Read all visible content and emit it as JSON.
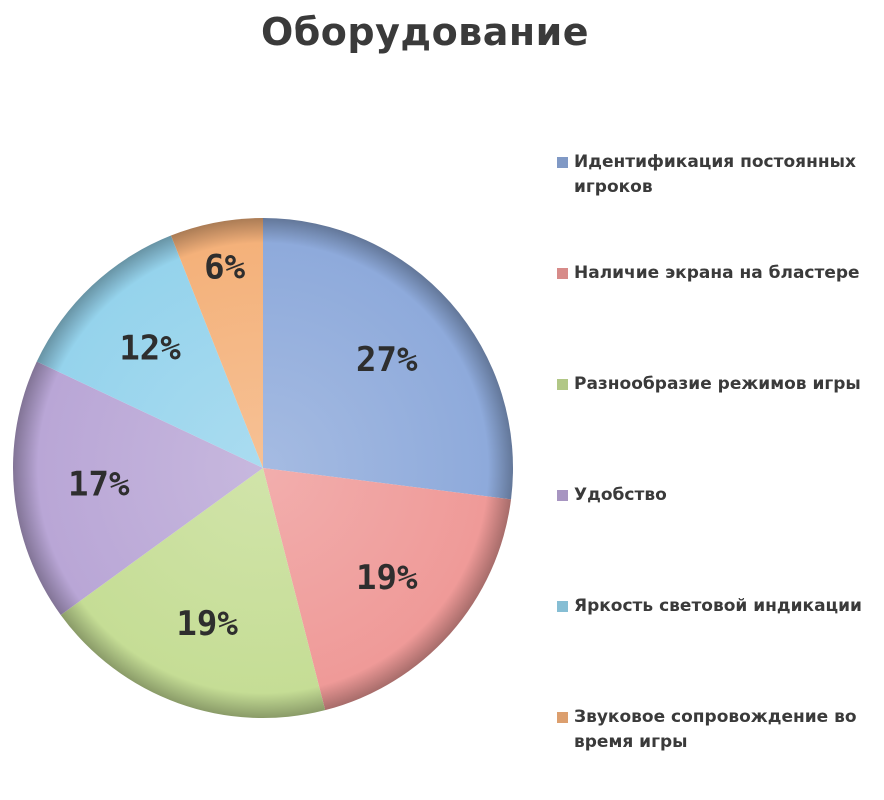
{
  "chart_data": {
    "type": "pie",
    "title": "Оборудование",
    "categories": [
      "Идентификация постоянных игроков",
      "Наличие экрана на бластере",
      "Разнообразие режимов игры",
      "Удобство",
      "Яркость световой индикации",
      "Звуковое сопровождение во время игры"
    ],
    "values": [
      27,
      19,
      19,
      17,
      12,
      6
    ],
    "value_labels": [
      "27%",
      "19%",
      "19%",
      "17%",
      "12%",
      "6%"
    ],
    "colors": [
      "#8eaadb",
      "#ef9a98",
      "#c5dd95",
      "#b9a6d6",
      "#95d3ec",
      "#f4b17a"
    ],
    "legend_placement": "right"
  }
}
